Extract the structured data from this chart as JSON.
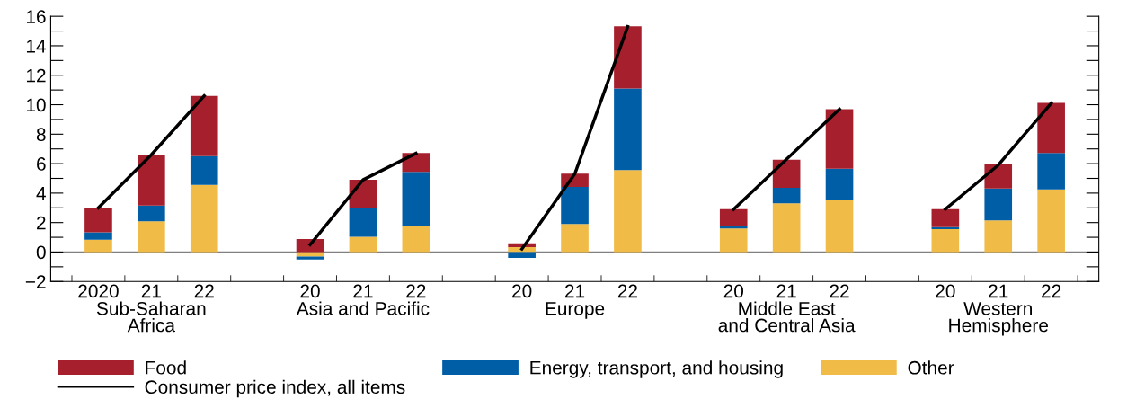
{
  "chart_data": {
    "type": "bar",
    "stacked": true,
    "categories": [
      "2020",
      "21",
      "22",
      null,
      "20",
      "21",
      "22",
      null,
      "20",
      "21",
      "22",
      null,
      "20",
      "21",
      "22",
      null,
      "20",
      "21",
      "22"
    ],
    "series": [
      {
        "name": "Other",
        "color": "#f1bb48",
        "values": [
          0.84,
          2.09,
          4.56,
          null,
          -0.3,
          1.04,
          1.8,
          null,
          0.34,
          1.91,
          5.56,
          null,
          1.6,
          3.31,
          3.55,
          null,
          1.55,
          2.15,
          4.26
        ]
      },
      {
        "name": "Energy, transport, and housing",
        "color": "#005ea6",
        "values": [
          0.5,
          1.06,
          1.95,
          null,
          -0.2,
          1.97,
          3.64,
          null,
          -0.4,
          2.51,
          5.54,
          null,
          0.15,
          1.05,
          2.11,
          null,
          0.14,
          2.17,
          2.47
        ]
      },
      {
        "name": "Food",
        "color": "#a61f2d",
        "values": [
          1.65,
          3.45,
          4.08,
          null,
          0.88,
          1.9,
          1.29,
          null,
          0.26,
          0.9,
          4.22,
          null,
          1.16,
          1.91,
          4.04,
          null,
          1.22,
          1.64,
          3.39
        ]
      },
      {
        "name": "Consumer price index, all items",
        "type": "line",
        "color": "#000000",
        "values": [
          3.0,
          6.6,
          10.6,
          null,
          0.5,
          4.9,
          6.7,
          null,
          0.2,
          5.3,
          15.3,
          null,
          2.9,
          6.3,
          9.7,
          null,
          2.9,
          5.9,
          10.1
        ]
      }
    ],
    "annotations": [
      "Sub-Saharan\nAfrica",
      "Asia and Pacific",
      "Europe",
      "Middle East\nand Central Asia",
      "Western\nHemisphere"
    ],
    "ylim": [
      -2,
      16
    ],
    "yticks": [
      {
        "value": -2,
        "label": "−2"
      },
      {
        "value": -1,
        "label": null
      },
      0,
      {
        "value": 1,
        "label": null
      },
      2,
      {
        "value": 3,
        "label": null
      },
      4,
      {
        "value": 5,
        "label": null
      },
      6,
      {
        "value": 7,
        "label": null
      },
      8,
      {
        "value": 9,
        "label": null
      },
      10,
      {
        "value": 11,
        "label": null
      },
      12,
      {
        "value": 13,
        "label": null
      },
      14,
      {
        "value": 15,
        "label": null
      },
      16
    ],
    "ref_lines": [
      {
        "axis": "y",
        "value": 0,
        "color": "#808080"
      }
    ],
    "grid": false,
    "legend": "bottom",
    "line_style": "solid",
    "marker": "none"
  }
}
